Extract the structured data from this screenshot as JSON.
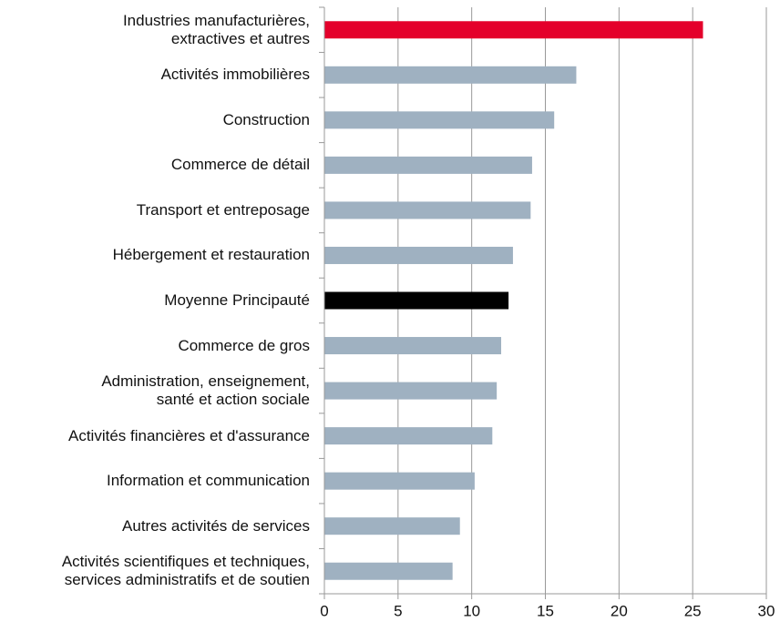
{
  "chart_data": {
    "type": "barh",
    "categories": [
      "Industries manufacturières,\nextractives et autres",
      "Activités immobilières",
      "Construction",
      "Commerce de détail",
      "Transport et entreposage",
      "Hébergement et restauration",
      "Moyenne Principauté",
      "Commerce de gros",
      "Administration, enseignement,\nsanté et action sociale",
      "Activités financières et d'assurance",
      "Information et communication",
      "Autres activités de services",
      "Activités scientifiques et techniques,\nservices administratifs et de soutien"
    ],
    "values": [
      25.7,
      17.1,
      15.6,
      14.1,
      14.0,
      12.8,
      12.5,
      12.0,
      11.7,
      11.4,
      10.2,
      9.2,
      8.7
    ],
    "colors": [
      "#e4002b",
      "#9fb1c1",
      "#9fb1c1",
      "#9fb1c1",
      "#9fb1c1",
      "#9fb1c1",
      "#000000",
      "#9fb1c1",
      "#9fb1c1",
      "#9fb1c1",
      "#9fb1c1",
      "#9fb1c1",
      "#9fb1c1"
    ],
    "xlim": [
      0,
      30
    ],
    "xticks": [
      0,
      5,
      10,
      15,
      20,
      25,
      30
    ],
    "grid": true
  }
}
